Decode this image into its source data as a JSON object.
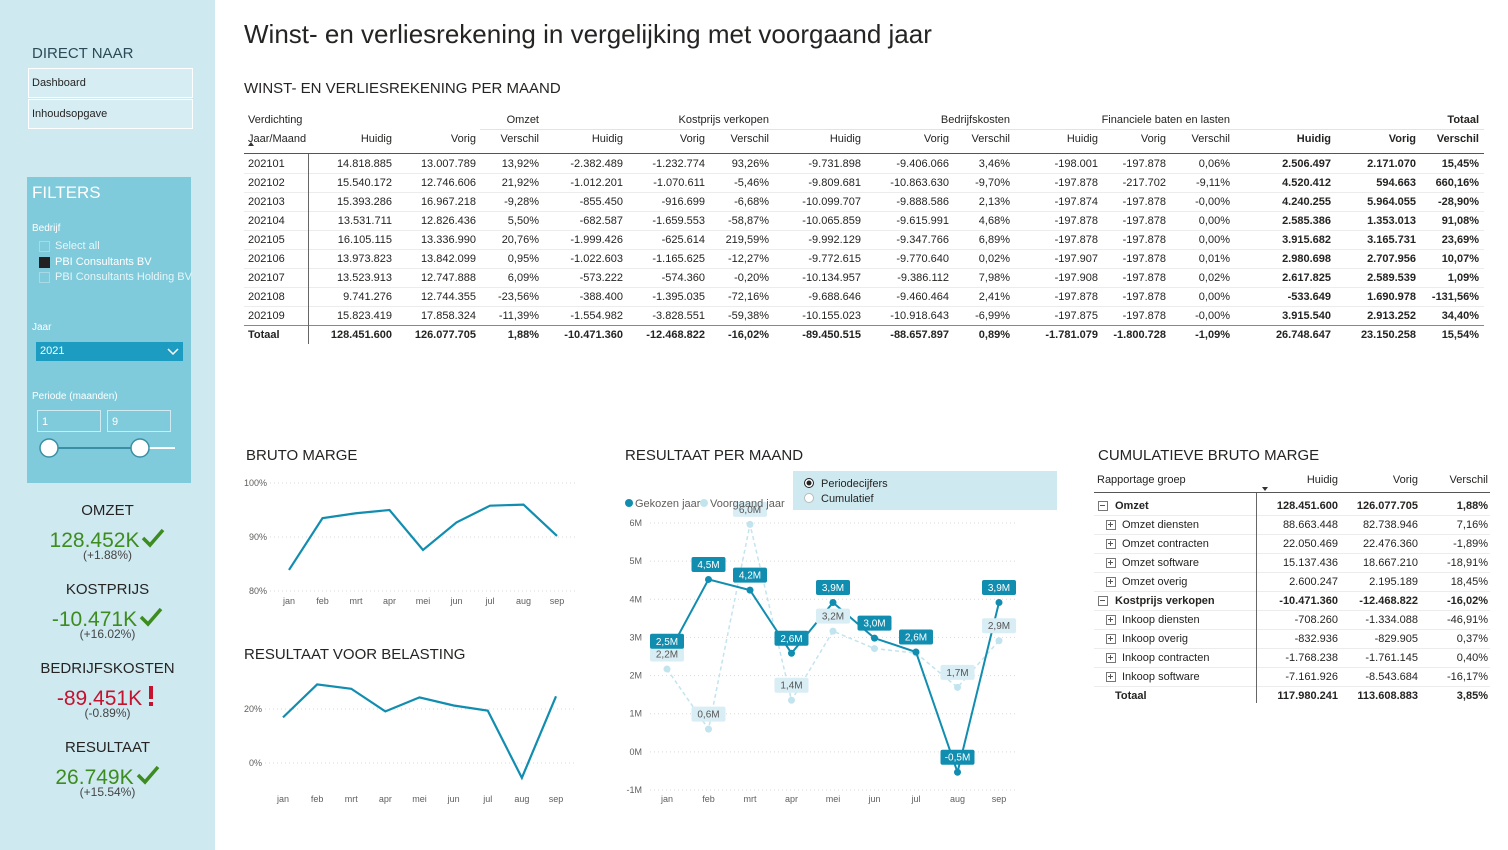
{
  "header": {
    "title": "Winst- en verliesrekening in vergelijking met voorgaand jaar"
  },
  "sidebar": {
    "nav_title": "DIRECT NAAR",
    "links": [
      "Dashboard",
      "Inhoudsopgave"
    ],
    "filters_title": "FILTERS",
    "company_label": "Bedrijf",
    "companies": [
      "Select all",
      "PBI Consultants BV",
      "PBI Consultants Holding BV"
    ],
    "company_selected": 1,
    "year_label": "Jaar",
    "year": "2021",
    "period_label": "Periode (maanden)",
    "period_from": "1",
    "period_to": "9"
  },
  "kpis": [
    {
      "label": "OMZET",
      "value": "128.452K",
      "change": "(+1.88%)",
      "status": "good"
    },
    {
      "label": "KOSTPRIJS",
      "value": "-10.471K",
      "change": "(+16.02%)",
      "status": "good"
    },
    {
      "label": "BEDRIJFSKOSTEN",
      "value": "-89.451K",
      "change": "(-0.89%)",
      "status": "bad"
    },
    {
      "label": "RESULTAAT",
      "value": "26.749K",
      "change": "(+15.54%)",
      "status": "good"
    }
  ],
  "pl_table": {
    "title": "WINST- EN VERLIESREKENING PER MAAND",
    "groups": [
      "Verdichting",
      "Omzet",
      "Kostprijs verkopen",
      "Bedrijfskosten",
      "Financiele baten en lasten",
      "Totaal"
    ],
    "columns": [
      "Jaar/Maand",
      "Huidig",
      "Vorig",
      "Verschil",
      "Huidig",
      "Vorig",
      "Verschil",
      "Huidig",
      "Vorig",
      "Verschil",
      "Huidig",
      "Vorig",
      "Verschil",
      "Huidig",
      "Vorig",
      "Verschil"
    ],
    "rows": [
      [
        "202101",
        "14.818.885",
        "13.007.789",
        "13,92%",
        "-2.382.489",
        "-1.232.774",
        "93,26%",
        "-9.731.898",
        "-9.406.066",
        "3,46%",
        "-198.001",
        "-197.878",
        "0,06%",
        "2.506.497",
        "2.171.070",
        "15,45%"
      ],
      [
        "202102",
        "15.540.172",
        "12.746.606",
        "21,92%",
        "-1.012.201",
        "-1.070.611",
        "-5,46%",
        "-9.809.681",
        "-10.863.630",
        "-9,70%",
        "-197.878",
        "-217.702",
        "-9,11%",
        "4.520.412",
        "594.663",
        "660,16%"
      ],
      [
        "202103",
        "15.393.286",
        "16.967.218",
        "-9,28%",
        "-855.450",
        "-916.699",
        "-6,68%",
        "-10.099.707",
        "-9.888.586",
        "2,13%",
        "-197.874",
        "-197.878",
        "-0,00%",
        "4.240.255",
        "5.964.055",
        "-28,90%"
      ],
      [
        "202104",
        "13.531.711",
        "12.826.436",
        "5,50%",
        "-682.587",
        "-1.659.553",
        "-58,87%",
        "-10.065.859",
        "-9.615.991",
        "4,68%",
        "-197.878",
        "-197.878",
        "0,00%",
        "2.585.386",
        "1.353.013",
        "91,08%"
      ],
      [
        "202105",
        "16.105.115",
        "13.336.990",
        "20,76%",
        "-1.999.426",
        "-625.614",
        "219,59%",
        "-9.992.129",
        "-9.347.766",
        "6,89%",
        "-197.878",
        "-197.878",
        "0,00%",
        "3.915.682",
        "3.165.731",
        "23,69%"
      ],
      [
        "202106",
        "13.973.823",
        "13.842.099",
        "0,95%",
        "-1.022.603",
        "-1.165.625",
        "-12,27%",
        "-9.772.615",
        "-9.770.640",
        "0,02%",
        "-197.907",
        "-197.878",
        "0,01%",
        "2.980.698",
        "2.707.956",
        "10,07%"
      ],
      [
        "202107",
        "13.523.913",
        "12.747.888",
        "6,09%",
        "-573.222",
        "-574.360",
        "-0,20%",
        "-10.134.957",
        "-9.386.112",
        "7,98%",
        "-197.908",
        "-197.878",
        "0,02%",
        "2.617.825",
        "2.589.539",
        "1,09%"
      ],
      [
        "202108",
        "9.741.276",
        "12.744.355",
        "-23,56%",
        "-388.400",
        "-1.395.035",
        "-72,16%",
        "-9.688.646",
        "-9.460.464",
        "2,41%",
        "-197.878",
        "-197.878",
        "0,00%",
        "-533.649",
        "1.690.978",
        "-131,56%"
      ],
      [
        "202109",
        "15.823.419",
        "17.858.324",
        "-11,39%",
        "-1.554.982",
        "-3.828.551",
        "-59,38%",
        "-10.155.023",
        "-10.918.643",
        "-6,99%",
        "-197.875",
        "-197.878",
        "-0,00%",
        "3.915.540",
        "2.913.252",
        "34,40%"
      ]
    ],
    "total": [
      "Totaal",
      "128.451.600",
      "126.077.705",
      "1,88%",
      "-10.471.360",
      "-12.468.822",
      "-16,02%",
      "-89.450.515",
      "-88.657.897",
      "0,89%",
      "-1.781.079",
      "-1.800.728",
      "-1,09%",
      "26.748.647",
      "23.150.258",
      "15,54%"
    ]
  },
  "chart_data": [
    {
      "type": "line",
      "title": "BRUTO MARGE",
      "categories": [
        "jan",
        "feb",
        "mrt",
        "apr",
        "mei",
        "jun",
        "jul",
        "aug",
        "sep"
      ],
      "values": [
        83.9,
        93.5,
        94.4,
        95.0,
        87.6,
        92.7,
        95.8,
        96.0,
        90.2
      ],
      "color": "#118DB0",
      "ylim": [
        80,
        100
      ],
      "yticks": [
        {
          "value": 80,
          "label": "80%"
        },
        {
          "value": 90,
          "label": "90%"
        },
        {
          "value": 100,
          "label": "100%"
        }
      ],
      "grid": true
    },
    {
      "type": "line",
      "title": "RESULTAAT VOOR BELASTING",
      "categories": [
        "jan",
        "feb",
        "mrt",
        "apr",
        "mei",
        "jun",
        "jul",
        "aug",
        "sep"
      ],
      "values": [
        16.9,
        29.1,
        27.5,
        19.1,
        24.3,
        21.3,
        19.4,
        -5.5,
        24.7
      ],
      "color": "#118DB0",
      "ylim": [
        -10,
        35
      ],
      "yticks": [
        {
          "value": 0,
          "label": "0%"
        },
        {
          "value": 20,
          "label": "20%"
        }
      ],
      "grid": true
    },
    {
      "type": "line",
      "title": "RESULTAAT PER MAAND",
      "categories": [
        "jan",
        "feb",
        "mrt",
        "apr",
        "mei",
        "jun",
        "jul",
        "aug",
        "sep"
      ],
      "options": [
        "Periodecijfers",
        "Cumulatief"
      ],
      "option_selected": 0,
      "series": [
        {
          "name": "Gekozen jaar",
          "color": "#118DB0",
          "style": "solid",
          "values": [
            2.506,
            4.52,
            4.24,
            2.585,
            3.916,
            2.981,
            2.618,
            -0.534,
            3.916
          ],
          "value_labels": [
            "2,5M",
            "4,5M",
            "4,2M",
            "2,6M",
            "3,9M",
            "3,0M",
            "2,6M",
            "-0,5M",
            "3,9M"
          ]
        },
        {
          "name": "Voorgaand jaar",
          "color": "#c2e4ee",
          "style": "dashed",
          "values": [
            2.171,
            0.595,
            5.964,
            1.353,
            3.166,
            2.708,
            2.59,
            1.691,
            2.913
          ],
          "value_labels": [
            "2,2M",
            "0,6M",
            "6,0M",
            "1,4M",
            "3,2M",
            null,
            null,
            "1,7M",
            "2,9M"
          ]
        }
      ],
      "ylim": [
        -1,
        6
      ],
      "yticks": [
        {
          "value": -1,
          "label": "-1M"
        },
        {
          "value": 0,
          "label": "0M"
        },
        {
          "value": 1,
          "label": "1M"
        },
        {
          "value": 2,
          "label": "2M"
        },
        {
          "value": 3,
          "label": "3M"
        },
        {
          "value": 4,
          "label": "4M"
        },
        {
          "value": 5,
          "label": "5M"
        },
        {
          "value": 6,
          "label": "6M"
        }
      ],
      "grid": true
    }
  ],
  "cum_table": {
    "title": "CUMULATIEVE BRUTO MARGE",
    "columns": [
      "Rapportage groep",
      "Huidig",
      "Vorig",
      "Verschil"
    ],
    "groups": [
      {
        "label": "Omzet",
        "values": [
          "128.451.600",
          "126.077.705",
          "1,88%"
        ],
        "items": [
          {
            "label": "Omzet diensten",
            "values": [
              "88.663.448",
              "82.738.946",
              "7,16%"
            ]
          },
          {
            "label": "Omzet contracten",
            "values": [
              "22.050.469",
              "22.476.360",
              "-1,89%"
            ]
          },
          {
            "label": "Omzet software",
            "values": [
              "15.137.436",
              "18.667.210",
              "-18,91%"
            ]
          },
          {
            "label": "Omzet overig",
            "values": [
              "2.600.247",
              "2.195.189",
              "18,45%"
            ]
          }
        ]
      },
      {
        "label": "Kostprijs verkopen",
        "values": [
          "-10.471.360",
          "-12.468.822",
          "-16,02%"
        ],
        "items": [
          {
            "label": "Inkoop diensten",
            "values": [
              "-708.260",
              "-1.334.088",
              "-46,91%"
            ]
          },
          {
            "label": "Inkoop overig",
            "values": [
              "-832.936",
              "-829.905",
              "0,37%"
            ]
          },
          {
            "label": "Inkoop contracten",
            "values": [
              "-1.768.238",
              "-1.761.145",
              "0,40%"
            ]
          },
          {
            "label": "Inkoop software",
            "values": [
              "-7.161.926",
              "-8.543.684",
              "-16,17%"
            ]
          }
        ]
      }
    ],
    "total": {
      "label": "Totaal",
      "values": [
        "117.980.241",
        "113.608.883",
        "3,85%"
      ]
    }
  }
}
